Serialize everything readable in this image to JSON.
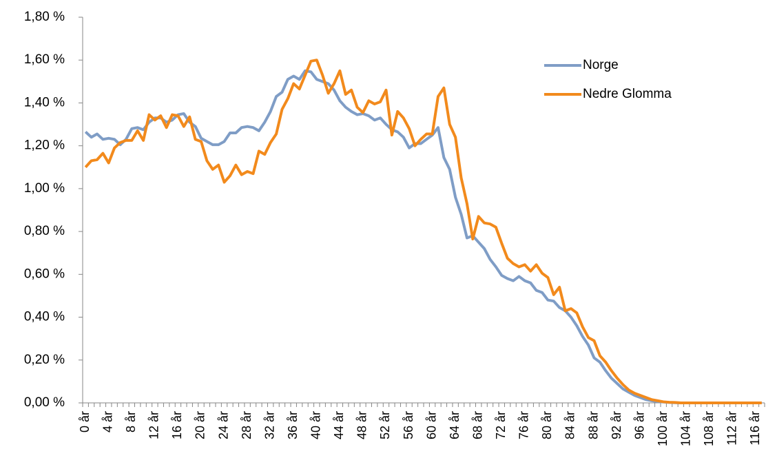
{
  "chart_data": {
    "type": "line",
    "categories": [
      "0 år",
      null,
      null,
      null,
      "4 år",
      null,
      null,
      null,
      "8 år",
      null,
      null,
      null,
      "12 år",
      null,
      null,
      null,
      "16 år",
      null,
      null,
      null,
      "20 år",
      null,
      null,
      null,
      "24 år",
      null,
      null,
      null,
      "28 år",
      null,
      null,
      null,
      "32 år",
      null,
      null,
      null,
      "36 år",
      null,
      null,
      null,
      "40 år",
      null,
      null,
      null,
      "44 år",
      null,
      null,
      null,
      "48 år",
      null,
      null,
      null,
      "52 år",
      null,
      null,
      null,
      "56 år",
      null,
      null,
      null,
      "60 år",
      null,
      null,
      null,
      "64 år",
      null,
      null,
      null,
      "68 år",
      null,
      null,
      null,
      "72 år",
      null,
      null,
      null,
      "76 år",
      null,
      null,
      null,
      "80 år",
      null,
      null,
      null,
      "84 år",
      null,
      null,
      null,
      "88 år",
      null,
      null,
      null,
      "92 år",
      null,
      null,
      null,
      "96 år",
      null,
      null,
      null,
      "100 år",
      null,
      null,
      null,
      "104 år",
      null,
      null,
      null,
      "108 år",
      null,
      null,
      null,
      "112 år",
      null,
      null,
      null,
      "116 år",
      null
    ],
    "series": [
      {
        "name": "Norge",
        "color": "#7f9dc6",
        "values": [
          1.265,
          1.24,
          1.255,
          1.23,
          1.235,
          1.23,
          1.205,
          1.23,
          1.28,
          1.285,
          1.275,
          1.31,
          1.33,
          1.33,
          1.31,
          1.32,
          1.345,
          1.35,
          1.31,
          1.29,
          1.235,
          1.22,
          1.205,
          1.205,
          1.22,
          1.26,
          1.26,
          1.285,
          1.29,
          1.285,
          1.27,
          1.31,
          1.36,
          1.43,
          1.45,
          1.51,
          1.525,
          1.51,
          1.55,
          1.545,
          1.51,
          1.5,
          1.49,
          1.46,
          1.41,
          1.38,
          1.36,
          1.345,
          1.35,
          1.34,
          1.32,
          1.33,
          1.3,
          1.275,
          1.265,
          1.24,
          1.19,
          1.21,
          1.21,
          1.23,
          1.25,
          1.285,
          1.145,
          1.09,
          0.96,
          0.88,
          0.77,
          0.78,
          0.75,
          0.72,
          0.67,
          0.635,
          0.595,
          0.58,
          0.57,
          0.59,
          0.57,
          0.56,
          0.525,
          0.515,
          0.48,
          0.475,
          0.445,
          0.43,
          0.4,
          0.36,
          0.31,
          0.27,
          0.21,
          0.19,
          0.15,
          0.115,
          0.09,
          0.065,
          0.05,
          0.035,
          0.025,
          0.015,
          0.01,
          0.006,
          0.004,
          0.002,
          0.001,
          0,
          0,
          0,
          0,
          0,
          0,
          0,
          0,
          0,
          0,
          0,
          0,
          0,
          0,
          0
        ]
      },
      {
        "name": "Nedre Glomma",
        "color": "#f28a1c",
        "values": [
          1.1,
          1.13,
          1.135,
          1.165,
          1.12,
          1.19,
          1.215,
          1.225,
          1.225,
          1.27,
          1.225,
          1.345,
          1.32,
          1.34,
          1.285,
          1.345,
          1.34,
          1.29,
          1.335,
          1.23,
          1.22,
          1.13,
          1.09,
          1.11,
          1.03,
          1.06,
          1.11,
          1.065,
          1.08,
          1.07,
          1.175,
          1.16,
          1.215,
          1.255,
          1.37,
          1.42,
          1.49,
          1.465,
          1.53,
          1.595,
          1.6,
          1.53,
          1.445,
          1.49,
          1.55,
          1.44,
          1.46,
          1.38,
          1.355,
          1.41,
          1.395,
          1.405,
          1.46,
          1.25,
          1.36,
          1.33,
          1.28,
          1.2,
          1.23,
          1.255,
          1.255,
          1.43,
          1.47,
          1.3,
          1.24,
          1.05,
          0.93,
          0.765,
          0.87,
          0.84,
          0.835,
          0.82,
          0.745,
          0.675,
          0.65,
          0.635,
          0.645,
          0.615,
          0.645,
          0.605,
          0.585,
          0.505,
          0.54,
          0.43,
          0.44,
          0.42,
          0.355,
          0.305,
          0.29,
          0.22,
          0.19,
          0.15,
          0.115,
          0.085,
          0.06,
          0.045,
          0.035,
          0.025,
          0.015,
          0.01,
          0.005,
          0.003,
          0.002,
          0,
          0,
          0,
          0,
          0,
          0,
          0,
          0,
          0,
          0,
          0,
          0,
          0,
          0,
          0
        ]
      }
    ],
    "ylim": [
      0,
      1.8
    ],
    "yticks": [
      {
        "value": 0,
        "label": "0,00 %"
      },
      {
        "value": 0.2,
        "label": "0,20 %"
      },
      {
        "value": 0.4,
        "label": "0,40 %"
      },
      {
        "value": 0.6,
        "label": "0,60 %"
      },
      {
        "value": 0.8,
        "label": "0,80 %"
      },
      {
        "value": 1.0,
        "label": "1,00 %"
      },
      {
        "value": 1.2,
        "label": "1,20 %"
      },
      {
        "value": 1.4,
        "label": "1,40 %"
      },
      {
        "value": 1.6,
        "label": "1,60 %"
      },
      {
        "value": 1.8,
        "label": "1,80 %"
      }
    ],
    "grid": false,
    "legend": "upper right"
  }
}
